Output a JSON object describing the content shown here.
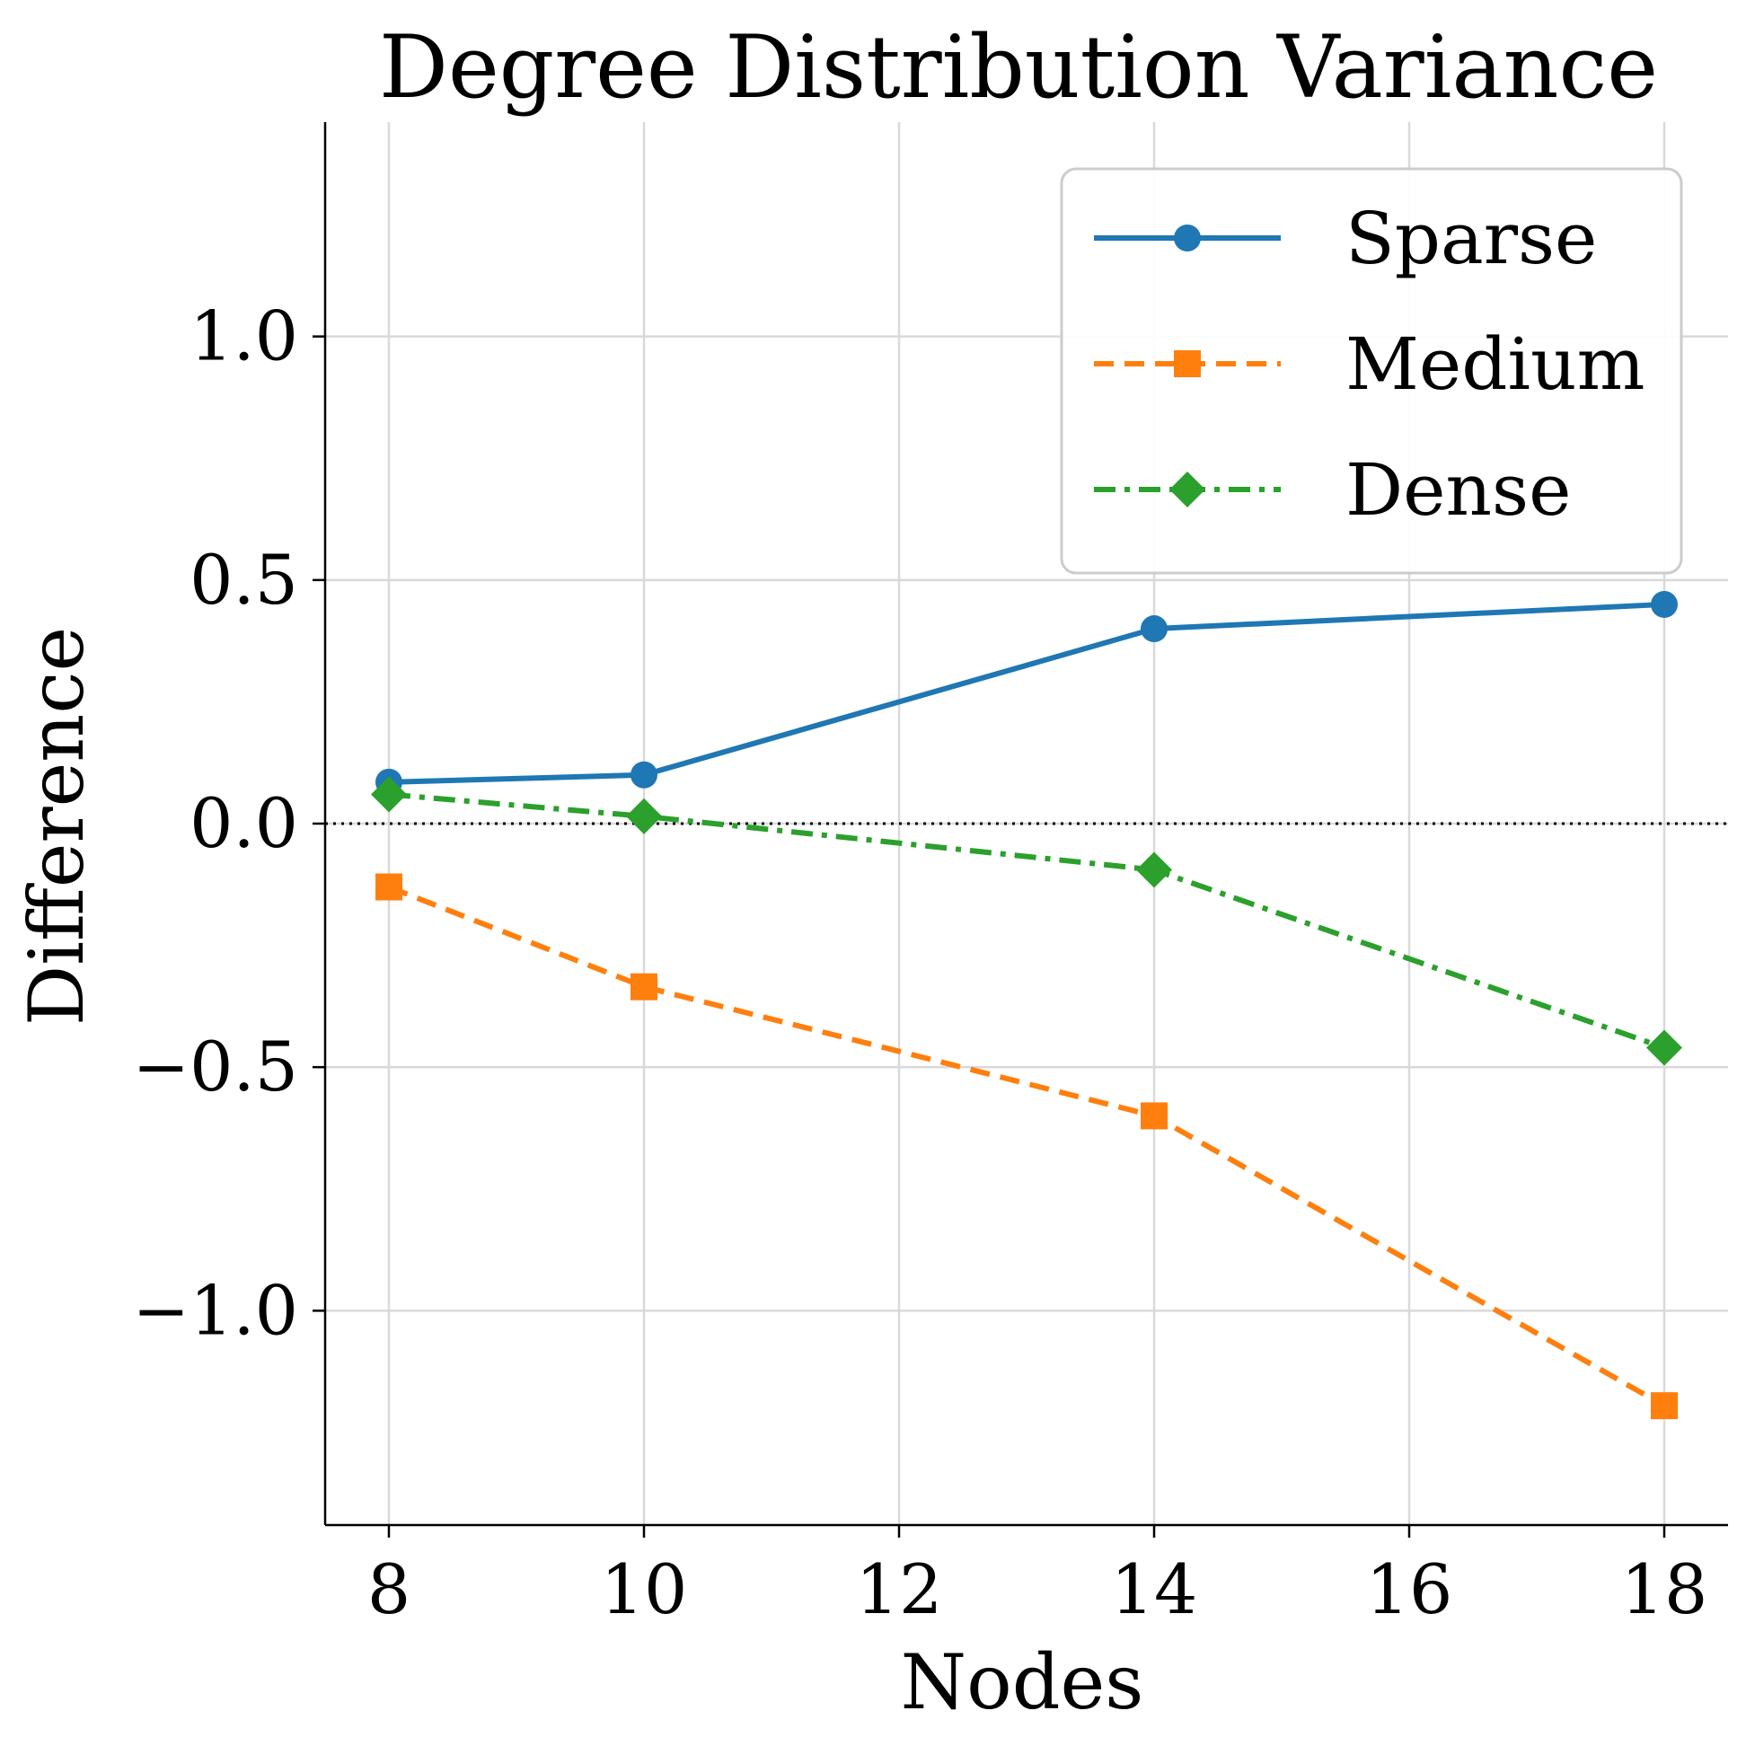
{
  "chart_data": {
    "type": "line",
    "title": "Degree Distribution Variance",
    "xlabel": "Nodes",
    "ylabel": "Difference",
    "x": [
      8,
      10,
      14,
      18
    ],
    "xlim": [
      7.5,
      18.5
    ],
    "ylim": [
      -1.44,
      1.44
    ],
    "xticks": [
      8,
      10,
      12,
      14,
      16,
      18
    ],
    "yticks": [
      -1.0,
      -0.5,
      0.0,
      0.5,
      1.0
    ],
    "xtick_labels": [
      "8",
      "10",
      "12",
      "14",
      "16",
      "18"
    ],
    "ytick_labels": [
      "−1.0",
      "−0.5",
      "0.0",
      "0.5",
      "1.0"
    ],
    "grid": true,
    "reference_line": {
      "y": 0.0,
      "style": "dotted",
      "color": "#000000"
    },
    "legend_position": "top-right",
    "series": [
      {
        "name": "Sparse",
        "values": [
          0.085,
          0.1,
          0.4,
          0.45
        ],
        "color": "#1f77b4",
        "line_style": "solid",
        "marker": "circle"
      },
      {
        "name": "Medium",
        "values": [
          -0.13,
          -0.335,
          -0.6,
          -1.195
        ],
        "color": "#ff7f0e",
        "line_style": "dashed",
        "marker": "square"
      },
      {
        "name": "Dense",
        "values": [
          0.06,
          0.015,
          -0.095,
          -0.46
        ],
        "color": "#2ca02c",
        "line_style": "dashdot",
        "marker": "diamond"
      }
    ]
  }
}
